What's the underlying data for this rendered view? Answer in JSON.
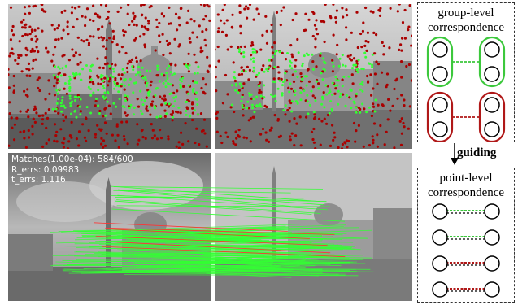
{
  "right_diagram": {
    "group_box_title_line1": "group-level",
    "group_box_title_line2": "correspondence",
    "guiding_label": "guiding",
    "point_box_title_line1": "point-level",
    "point_box_title_line2": "correspondence"
  },
  "match_stats": {
    "line1": "Matches(1.00e-04): 584/600",
    "line2": "R_errs: 0.09983",
    "line3": "t_errs: 1.116"
  },
  "colors": {
    "inlier_green": "#33ff33",
    "outlier_red": "#aa0000",
    "group_green": "#3cc83c",
    "group_red": "#b01818"
  }
}
